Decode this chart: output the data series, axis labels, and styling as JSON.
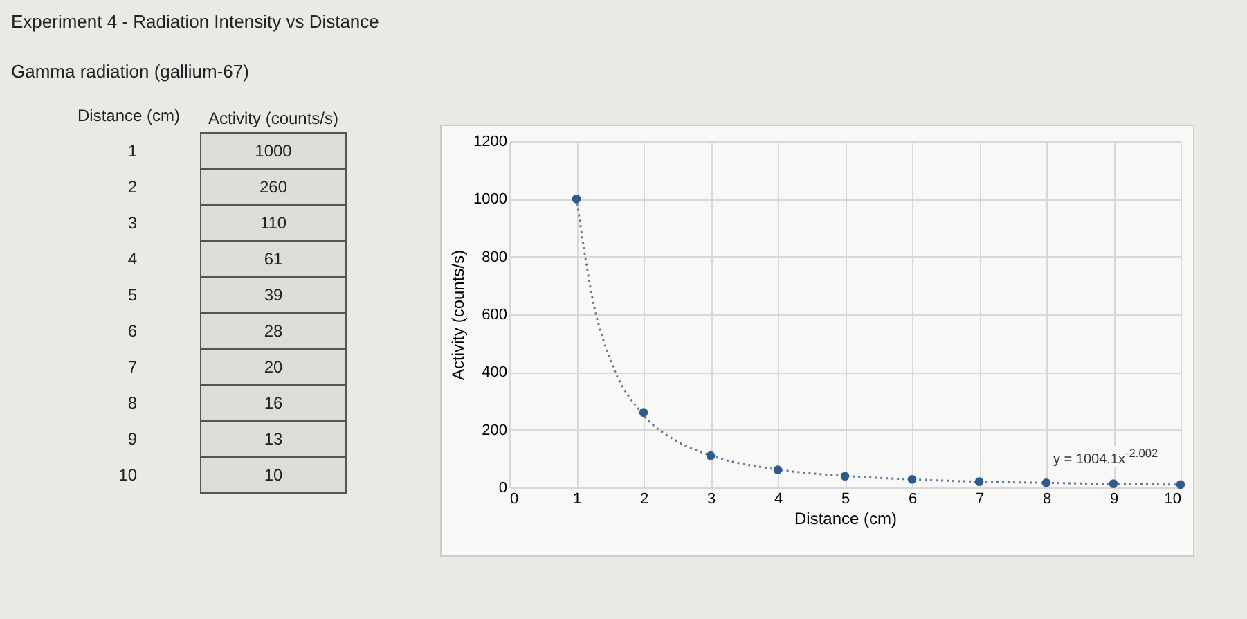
{
  "chart_data": [
    {
      "type": "heatmap",
      "title": "Experiment 4 - Radiation Intensity vs Distance",
      "subtitle": "Gamma radiation (gallium-67)",
      "ylabel": "Distance (cm)",
      "categories": [
        "Activity (counts/s)"
      ],
      "y_categories": [
        "1",
        "2",
        "3",
        "4",
        "5",
        "6",
        "7",
        "8",
        "9",
        "10"
      ],
      "cells": [
        [
          1000
        ],
        [
          260
        ],
        [
          110
        ],
        [
          61
        ],
        [
          39
        ],
        [
          28
        ],
        [
          20
        ],
        [
          16
        ],
        [
          13
        ],
        [
          10
        ]
      ],
      "data_labels": true
    },
    {
      "type": "scatter",
      "xlabel": "Distance (cm)",
      "ylabel": "Activity (counts/s)",
      "x": [
        1,
        2,
        3,
        4,
        5,
        6,
        7,
        8,
        9,
        10
      ],
      "series": [
        {
          "type": "scatter",
          "color": "#2f5b8c",
          "marker": "circle",
          "values": [
            1000,
            260,
            110,
            61,
            39,
            28,
            20,
            16,
            13,
            10
          ]
        },
        {
          "type": "line",
          "color": "#5a7a9a",
          "line_style": "dotted",
          "x": [
            1,
            1.25,
            1.5,
            2,
            2.5,
            3,
            4,
            5,
            6,
            7,
            8,
            9,
            10
          ],
          "values": [
            1004,
            643,
            446,
            251,
            160,
            111,
            62,
            40,
            28,
            20,
            16,
            12,
            10
          ]
        }
      ],
      "xlim": [
        0,
        10
      ],
      "xticks": [
        0,
        1,
        2,
        3,
        4,
        5,
        6,
        7,
        8,
        9,
        10
      ],
      "ylim": [
        0,
        1200
      ],
      "yticks": [
        0,
        200,
        400,
        600,
        800,
        1000,
        1200
      ],
      "grid": true,
      "annotations": [
        "y = 1004.1x$^{-2.002}$"
      ]
    }
  ]
}
